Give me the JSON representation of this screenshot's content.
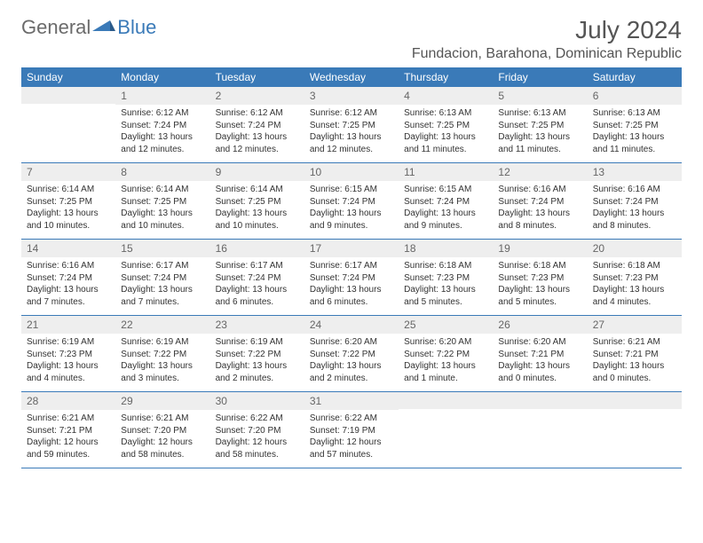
{
  "logo": {
    "general": "General",
    "blue": "Blue"
  },
  "title": "July 2024",
  "location": "Fundacion, Barahona, Dominican Republic",
  "weekdays": [
    "Sunday",
    "Monday",
    "Tuesday",
    "Wednesday",
    "Thursday",
    "Friday",
    "Saturday"
  ],
  "colors": {
    "header_bg": "#3a7ab8",
    "header_text": "#ffffff",
    "daynum_bg": "#eeeeee",
    "border": "#3a7ab8",
    "text": "#333333"
  },
  "first_day_offset": 1,
  "days": [
    {
      "n": "1",
      "sunrise": "Sunrise: 6:12 AM",
      "sunset": "Sunset: 7:24 PM",
      "daylight": "Daylight: 13 hours and 12 minutes."
    },
    {
      "n": "2",
      "sunrise": "Sunrise: 6:12 AM",
      "sunset": "Sunset: 7:24 PM",
      "daylight": "Daylight: 13 hours and 12 minutes."
    },
    {
      "n": "3",
      "sunrise": "Sunrise: 6:12 AM",
      "sunset": "Sunset: 7:25 PM",
      "daylight": "Daylight: 13 hours and 12 minutes."
    },
    {
      "n": "4",
      "sunrise": "Sunrise: 6:13 AM",
      "sunset": "Sunset: 7:25 PM",
      "daylight": "Daylight: 13 hours and 11 minutes."
    },
    {
      "n": "5",
      "sunrise": "Sunrise: 6:13 AM",
      "sunset": "Sunset: 7:25 PM",
      "daylight": "Daylight: 13 hours and 11 minutes."
    },
    {
      "n": "6",
      "sunrise": "Sunrise: 6:13 AM",
      "sunset": "Sunset: 7:25 PM",
      "daylight": "Daylight: 13 hours and 11 minutes."
    },
    {
      "n": "7",
      "sunrise": "Sunrise: 6:14 AM",
      "sunset": "Sunset: 7:25 PM",
      "daylight": "Daylight: 13 hours and 10 minutes."
    },
    {
      "n": "8",
      "sunrise": "Sunrise: 6:14 AM",
      "sunset": "Sunset: 7:25 PM",
      "daylight": "Daylight: 13 hours and 10 minutes."
    },
    {
      "n": "9",
      "sunrise": "Sunrise: 6:14 AM",
      "sunset": "Sunset: 7:25 PM",
      "daylight": "Daylight: 13 hours and 10 minutes."
    },
    {
      "n": "10",
      "sunrise": "Sunrise: 6:15 AM",
      "sunset": "Sunset: 7:24 PM",
      "daylight": "Daylight: 13 hours and 9 minutes."
    },
    {
      "n": "11",
      "sunrise": "Sunrise: 6:15 AM",
      "sunset": "Sunset: 7:24 PM",
      "daylight": "Daylight: 13 hours and 9 minutes."
    },
    {
      "n": "12",
      "sunrise": "Sunrise: 6:16 AM",
      "sunset": "Sunset: 7:24 PM",
      "daylight": "Daylight: 13 hours and 8 minutes."
    },
    {
      "n": "13",
      "sunrise": "Sunrise: 6:16 AM",
      "sunset": "Sunset: 7:24 PM",
      "daylight": "Daylight: 13 hours and 8 minutes."
    },
    {
      "n": "14",
      "sunrise": "Sunrise: 6:16 AM",
      "sunset": "Sunset: 7:24 PM",
      "daylight": "Daylight: 13 hours and 7 minutes."
    },
    {
      "n": "15",
      "sunrise": "Sunrise: 6:17 AM",
      "sunset": "Sunset: 7:24 PM",
      "daylight": "Daylight: 13 hours and 7 minutes."
    },
    {
      "n": "16",
      "sunrise": "Sunrise: 6:17 AM",
      "sunset": "Sunset: 7:24 PM",
      "daylight": "Daylight: 13 hours and 6 minutes."
    },
    {
      "n": "17",
      "sunrise": "Sunrise: 6:17 AM",
      "sunset": "Sunset: 7:24 PM",
      "daylight": "Daylight: 13 hours and 6 minutes."
    },
    {
      "n": "18",
      "sunrise": "Sunrise: 6:18 AM",
      "sunset": "Sunset: 7:23 PM",
      "daylight": "Daylight: 13 hours and 5 minutes."
    },
    {
      "n": "19",
      "sunrise": "Sunrise: 6:18 AM",
      "sunset": "Sunset: 7:23 PM",
      "daylight": "Daylight: 13 hours and 5 minutes."
    },
    {
      "n": "20",
      "sunrise": "Sunrise: 6:18 AM",
      "sunset": "Sunset: 7:23 PM",
      "daylight": "Daylight: 13 hours and 4 minutes."
    },
    {
      "n": "21",
      "sunrise": "Sunrise: 6:19 AM",
      "sunset": "Sunset: 7:23 PM",
      "daylight": "Daylight: 13 hours and 4 minutes."
    },
    {
      "n": "22",
      "sunrise": "Sunrise: 6:19 AM",
      "sunset": "Sunset: 7:22 PM",
      "daylight": "Daylight: 13 hours and 3 minutes."
    },
    {
      "n": "23",
      "sunrise": "Sunrise: 6:19 AM",
      "sunset": "Sunset: 7:22 PM",
      "daylight": "Daylight: 13 hours and 2 minutes."
    },
    {
      "n": "24",
      "sunrise": "Sunrise: 6:20 AM",
      "sunset": "Sunset: 7:22 PM",
      "daylight": "Daylight: 13 hours and 2 minutes."
    },
    {
      "n": "25",
      "sunrise": "Sunrise: 6:20 AM",
      "sunset": "Sunset: 7:22 PM",
      "daylight": "Daylight: 13 hours and 1 minute."
    },
    {
      "n": "26",
      "sunrise": "Sunrise: 6:20 AM",
      "sunset": "Sunset: 7:21 PM",
      "daylight": "Daylight: 13 hours and 0 minutes."
    },
    {
      "n": "27",
      "sunrise": "Sunrise: 6:21 AM",
      "sunset": "Sunset: 7:21 PM",
      "daylight": "Daylight: 13 hours and 0 minutes."
    },
    {
      "n": "28",
      "sunrise": "Sunrise: 6:21 AM",
      "sunset": "Sunset: 7:21 PM",
      "daylight": "Daylight: 12 hours and 59 minutes."
    },
    {
      "n": "29",
      "sunrise": "Sunrise: 6:21 AM",
      "sunset": "Sunset: 7:20 PM",
      "daylight": "Daylight: 12 hours and 58 minutes."
    },
    {
      "n": "30",
      "sunrise": "Sunrise: 6:22 AM",
      "sunset": "Sunset: 7:20 PM",
      "daylight": "Daylight: 12 hours and 58 minutes."
    },
    {
      "n": "31",
      "sunrise": "Sunrise: 6:22 AM",
      "sunset": "Sunset: 7:19 PM",
      "daylight": "Daylight: 12 hours and 57 minutes."
    }
  ]
}
